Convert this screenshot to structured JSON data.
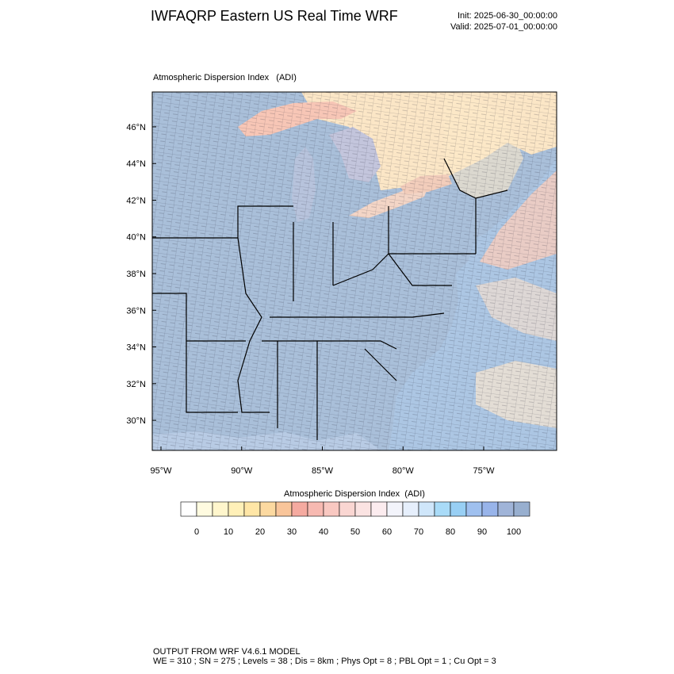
{
  "header": {
    "title": "IWFAQRP Eastern US Real Time WRF",
    "init": "Init: 2025-06-30_00:00:00",
    "valid": "Valid: 2025-07-01_00:00:00"
  },
  "map": {
    "subtitle": "Atmospheric Dispersion Index   (ADI)",
    "latlim": [
      28.36,
      47.9
    ],
    "lonlim": [
      -95.54,
      -70.48
    ],
    "yticks": [
      {
        "value": 30,
        "label": "30°N"
      },
      {
        "value": 32,
        "label": "32°N"
      },
      {
        "value": 34,
        "label": "34°N"
      },
      {
        "value": 36,
        "label": "36°N"
      },
      {
        "value": 38,
        "label": "38°N"
      },
      {
        "value": 40,
        "label": "40°N"
      },
      {
        "value": 42,
        "label": "42°N"
      },
      {
        "value": 44,
        "label": "44°N"
      },
      {
        "value": 46,
        "label": "46°N"
      }
    ],
    "xticks": [
      {
        "value": -95,
        "label": "95°W"
      },
      {
        "value": -90,
        "label": "90°W"
      },
      {
        "value": -85,
        "label": "85°W"
      },
      {
        "value": -80,
        "label": "80°W"
      },
      {
        "value": -75,
        "label": "75°W"
      }
    ]
  },
  "colorbar": {
    "title": "Atmospheric Dispersion Index  (ADI)",
    "ticks": [
      0,
      10,
      20,
      30,
      40,
      50,
      60,
      70,
      80,
      90,
      100
    ],
    "colors": [
      "#ffffff",
      "#fffbe0",
      "#fff6cc",
      "#fff0b8",
      "#ffe6a6",
      "#fcd9a0",
      "#f9c59a",
      "#f5aaa0",
      "#f7b9b1",
      "#f9c8c1",
      "#fad6d2",
      "#fbe3e2",
      "#fcecef",
      "#f3f4fb",
      "#e6effc",
      "#cfe6fa",
      "#a9dbf8",
      "#98cff4",
      "#9fc0ef",
      "#98b4ea",
      "#a0b4d8",
      "#98afcf"
    ]
  },
  "footer": {
    "line1": "OUTPUT FROM WRF V4.6.1 MODEL",
    "line2": "WE = 310 ; SN = 275 ; Levels = 38 ; Dis = 8km ; Phys Opt = 8 ; PBL Opt = 1 ; Cu Opt = 3"
  }
}
